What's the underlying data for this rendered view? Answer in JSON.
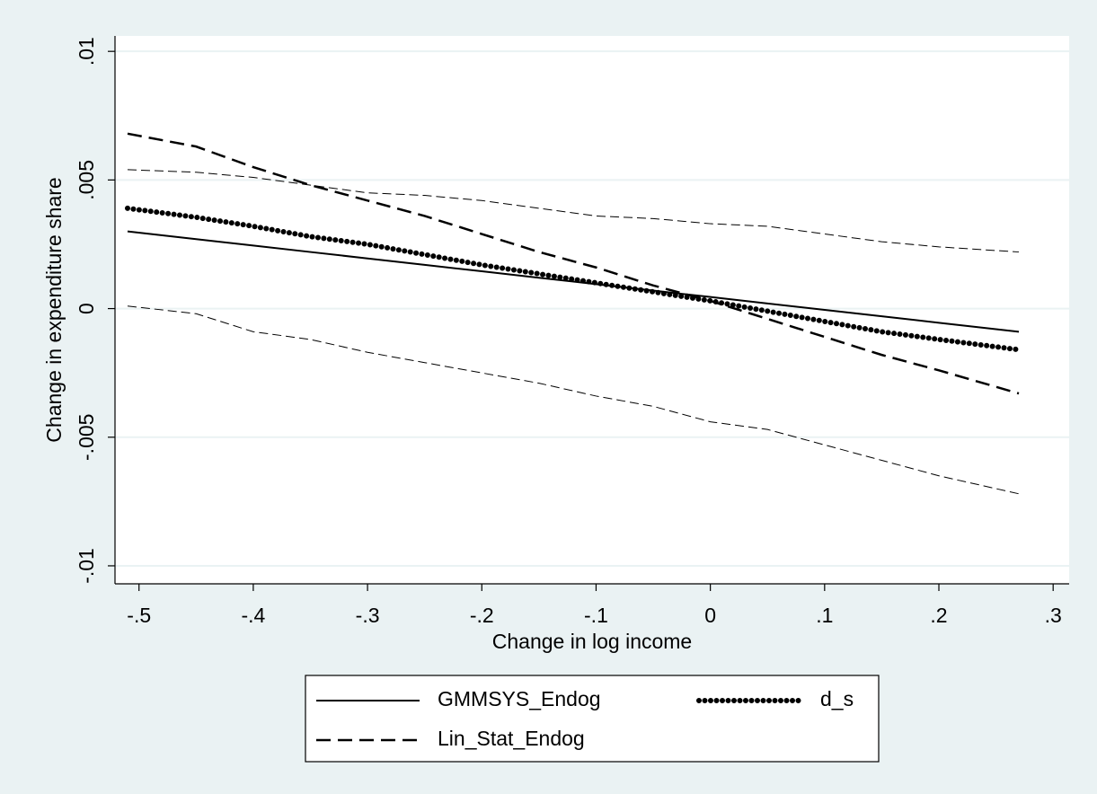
{
  "chart_data": {
    "type": "line",
    "x_label": "Change in log income",
    "y_label": "Change in expenditure share",
    "x": [
      -0.51,
      -0.45,
      -0.4,
      -0.35,
      -0.3,
      -0.25,
      -0.2,
      -0.15,
      -0.1,
      -0.05,
      0,
      0.05,
      0.1,
      0.15,
      0.2,
      0.27
    ],
    "series": [
      {
        "name": "GMMSYS_Endog",
        "color": "#000000",
        "style": "solid",
        "width": 2,
        "values": [
          0.003,
          0.0027,
          0.00245,
          0.0022,
          0.00195,
          0.0017,
          0.00145,
          0.0012,
          0.00095,
          0.0007,
          0.00045,
          0.0002,
          -5e-05,
          -0.0003,
          -0.00055,
          -0.0009
        ]
      },
      {
        "name": "d_s",
        "color": "#000000",
        "style": "dotted",
        "width": 6,
        "values": [
          0.0039,
          0.00355,
          0.0032,
          0.0028,
          0.0025,
          0.0021,
          0.0017,
          0.00135,
          0.001,
          0.00065,
          0.0003,
          -0.0001,
          -0.0005,
          -0.0009,
          -0.0012,
          -0.0016
        ]
      },
      {
        "name": "Lin_Stat_Endog",
        "color": "#000000",
        "style": "dash",
        "width": 2.5,
        "values": [
          0.0068,
          0.0063,
          0.0055,
          0.0048,
          0.0042,
          0.0036,
          0.0029,
          0.0022,
          0.0016,
          0.0009,
          0.0003,
          -0.0004,
          -0.0011,
          -0.0018,
          -0.0024,
          -0.0033
        ]
      },
      {
        "color": "#000000",
        "style": "dash",
        "width": 1,
        "values": [
          0.0054,
          0.0053,
          0.0051,
          0.0048,
          0.0045,
          0.0044,
          0.0042,
          0.0039,
          0.0036,
          0.0035,
          0.0033,
          0.0032,
          0.0029,
          0.0026,
          0.0024,
          0.0022
        ]
      },
      {
        "color": "#000000",
        "style": "dash",
        "width": 1,
        "values": [
          0.0001,
          -0.0002,
          -0.0009,
          -0.0012,
          -0.0017,
          -0.0021,
          -0.0025,
          -0.0029,
          -0.0034,
          -0.0038,
          -0.0044,
          -0.0047,
          -0.0053,
          -0.0059,
          -0.0065,
          -0.0072
        ]
      }
    ],
    "xlim": [
      -0.521,
      0.314
    ],
    "ylim": [
      -0.0107,
      0.0106
    ],
    "xticks": [
      {
        "value": -0.5,
        "label": "-.5"
      },
      {
        "value": -0.4,
        "label": "-.4"
      },
      {
        "value": -0.3,
        "label": "-.3"
      },
      {
        "value": -0.2,
        "label": "-.2"
      },
      {
        "value": -0.1,
        "label": "-.1"
      },
      0,
      {
        "value": 0.1,
        "label": ".1"
      },
      {
        "value": 0.2,
        "label": ".2"
      },
      {
        "value": 0.3,
        "label": ".3"
      }
    ],
    "yticks": [
      {
        "value": -0.01,
        "label": "-.01"
      },
      {
        "value": -0.005,
        "label": "-.005"
      },
      0,
      {
        "value": 0.005,
        "label": ".005"
      },
      {
        "value": 0.01,
        "label": ".01"
      }
    ],
    "grid": true,
    "legend_position": "bottom"
  }
}
